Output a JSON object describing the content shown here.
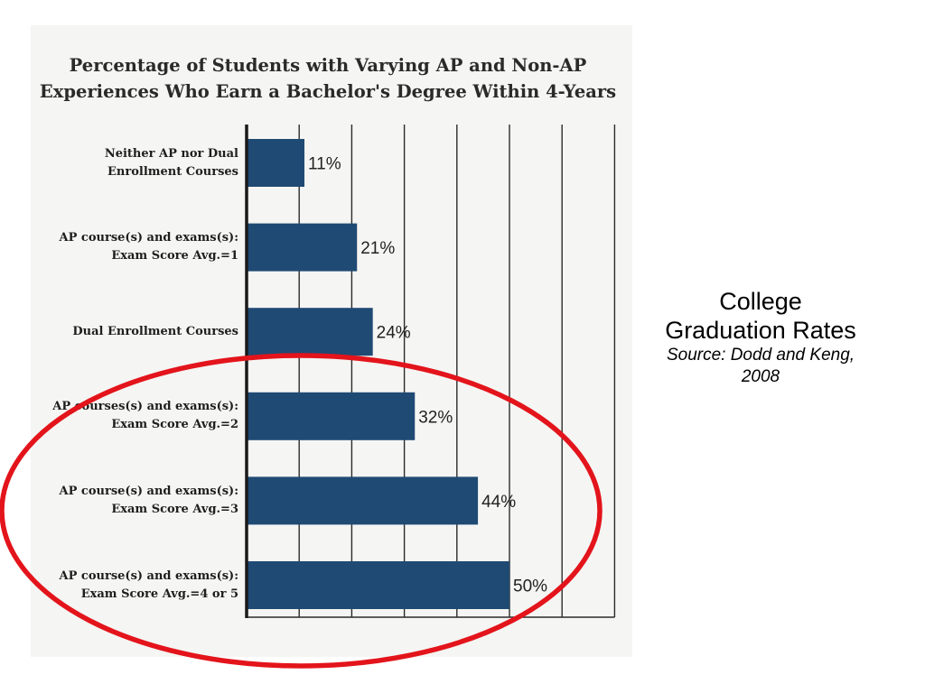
{
  "slide": {
    "title_line1": "College",
    "title_line2": "Graduation Rates",
    "source_line1": "Source: Dodd and Keng,",
    "source_line2": "2008"
  },
  "chart_data": {
    "type": "bar",
    "orientation": "horizontal",
    "title_line1": "Percentage of Students with Varying AP and Non-AP",
    "title_line2": "Experiences Who Earn a Bachelor's Degree Within 4-Years",
    "categories": [
      "Neither AP nor Dual\nEnrollment Courses",
      "AP course(s) and exams(s):\nExam Score Avg.=1",
      "Dual Enrollment Courses",
      "AP courses(s) and exams(s):\nExam Score Avg.=2",
      "AP course(s) and exams(s):\nExam Score Avg.=3",
      "AP course(s) and exams(s):\nExam Score Avg.=4 or 5"
    ],
    "values": [
      11,
      21,
      24,
      32,
      44,
      50
    ],
    "value_labels": [
      "11%",
      "21%",
      "24%",
      "32%",
      "44%",
      "50%"
    ],
    "xlim": [
      0,
      70
    ],
    "grid": true,
    "bar_color": "#1f4a74",
    "highlight": {
      "shape": "ellipse",
      "color": "#e3141b",
      "categories_circled": [
        3,
        4,
        5
      ]
    }
  }
}
